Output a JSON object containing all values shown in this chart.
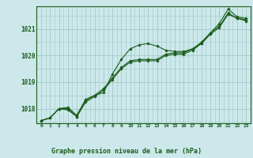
{
  "title": "Graphe pression niveau de la mer (hPa)",
  "background_color": "#cce8ea",
  "grid_color": "#a0c8c8",
  "line_color": "#1a5c1a",
  "marker_color": "#1a5c1a",
  "xlim": [
    -0.5,
    23.5
  ],
  "ylim": [
    1017.45,
    1021.85
  ],
  "yticks": [
    1018,
    1019,
    1020,
    1021
  ],
  "xticks": [
    0,
    1,
    2,
    3,
    4,
    5,
    6,
    7,
    8,
    9,
    10,
    11,
    12,
    13,
    14,
    15,
    16,
    17,
    18,
    19,
    20,
    21,
    22,
    23
  ],
  "series": [
    [
      1017.55,
      1017.65,
      1018.0,
      1018.05,
      1017.75,
      1018.35,
      1018.5,
      1018.6,
      1019.3,
      1019.85,
      1020.25,
      1020.4,
      1020.45,
      1020.35,
      1020.2,
      1020.15,
      1020.15,
      1020.25,
      1020.45,
      1020.85,
      1021.2,
      1021.75,
      1021.45,
      1021.4
    ],
    [
      1017.55,
      1017.65,
      1018.0,
      1018.0,
      1017.7,
      1018.3,
      1018.5,
      1018.75,
      1019.15,
      1019.55,
      1019.8,
      1019.85,
      1019.85,
      1019.85,
      1020.05,
      1020.1,
      1020.1,
      1020.25,
      1020.5,
      1020.85,
      1021.1,
      1021.6,
      1021.4,
      1021.35
    ],
    [
      1017.55,
      1017.65,
      1018.0,
      1017.95,
      1017.7,
      1018.25,
      1018.45,
      1018.7,
      1019.1,
      1019.5,
      1019.75,
      1019.8,
      1019.8,
      1019.8,
      1020.0,
      1020.05,
      1020.05,
      1020.2,
      1020.45,
      1020.8,
      1021.05,
      1021.55,
      1021.4,
      1021.3
    ]
  ]
}
